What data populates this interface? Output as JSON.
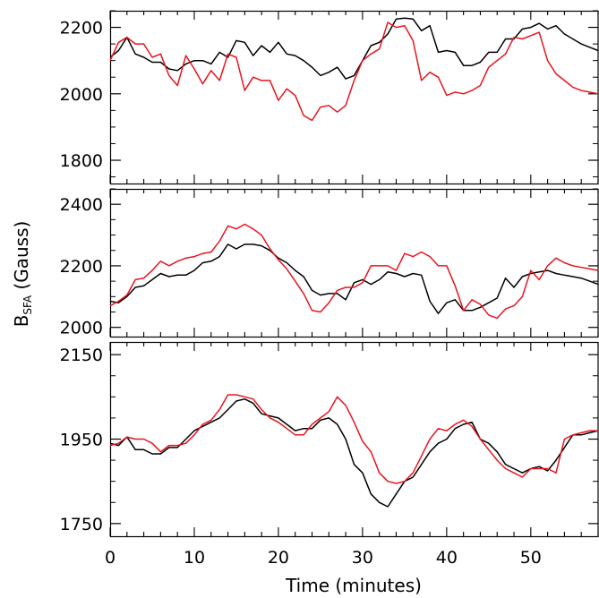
{
  "chart_data": [
    {
      "type": "line",
      "xlim": [
        0,
        58
      ],
      "ylim": [
        1730,
        2250
      ],
      "yticks": [
        1800,
        2000,
        2200
      ],
      "grid": false,
      "series": [
        {
          "color": "#000000",
          "x": [
            0,
            1,
            2,
            3,
            4,
            5,
            6,
            7,
            8,
            9,
            10,
            11,
            12,
            13,
            14,
            15,
            16,
            17,
            18,
            19,
            20,
            21,
            22,
            23,
            24,
            25,
            26,
            27,
            28,
            29,
            30,
            31,
            32,
            33,
            34,
            35,
            36,
            37,
            38,
            39,
            40,
            41,
            42,
            43,
            44,
            45,
            46,
            47,
            48,
            49,
            50,
            51,
            52,
            53,
            54,
            55,
            56,
            57,
            58
          ],
          "y": [
            2110,
            2130,
            2170,
            2120,
            2110,
            2095,
            2095,
            2075,
            2070,
            2090,
            2100,
            2100,
            2090,
            2125,
            2110,
            2160,
            2155,
            2115,
            2145,
            2125,
            2155,
            2120,
            2115,
            2100,
            2080,
            2055,
            2065,
            2080,
            2045,
            2055,
            2100,
            2145,
            2155,
            2180,
            2225,
            2228,
            2225,
            2190,
            2205,
            2125,
            2130,
            2125,
            2085,
            2085,
            2095,
            2125,
            2125,
            2165,
            2165,
            2195,
            2200,
            2212,
            2195,
            2205,
            2180,
            2165,
            2150,
            2140,
            2130
          ]
        },
        {
          "color": "#e8141e",
          "x": [
            0,
            1,
            2,
            3,
            4,
            5,
            6,
            7,
            8,
            9,
            10,
            11,
            12,
            13,
            14,
            15,
            16,
            17,
            18,
            19,
            20,
            21,
            22,
            23,
            24,
            25,
            26,
            27,
            28,
            29,
            30,
            31,
            32,
            33,
            34,
            35,
            36,
            37,
            38,
            39,
            40,
            41,
            42,
            43,
            44,
            45,
            46,
            47,
            48,
            49,
            50,
            51,
            52,
            53,
            54,
            55,
            56,
            57,
            58
          ],
          "y": [
            2100,
            2155,
            2170,
            2150,
            2150,
            2110,
            2120,
            2055,
            2025,
            2115,
            2075,
            2030,
            2070,
            2040,
            2120,
            2110,
            2010,
            2050,
            2040,
            2040,
            1980,
            2015,
            1995,
            1935,
            1920,
            1960,
            1965,
            1945,
            1965,
            2040,
            2100,
            2120,
            2135,
            2215,
            2200,
            2205,
            2160,
            2040,
            2065,
            2050,
            1995,
            2005,
            2000,
            2010,
            2025,
            2080,
            2100,
            2120,
            2170,
            2165,
            2175,
            2185,
            2100,
            2060,
            2040,
            2020,
            2010,
            2005,
            2000
          ]
        }
      ]
    },
    {
      "type": "line",
      "xlim": [
        0,
        58
      ],
      "ylim": [
        1970,
        2450
      ],
      "yticks": [
        2000,
        2200,
        2400
      ],
      "grid": false,
      "series": [
        {
          "color": "#000000",
          "x": [
            0,
            1,
            2,
            3,
            4,
            5,
            6,
            7,
            8,
            9,
            10,
            11,
            12,
            13,
            14,
            15,
            16,
            17,
            18,
            19,
            20,
            21,
            22,
            23,
            24,
            25,
            26,
            27,
            28,
            29,
            30,
            31,
            32,
            33,
            34,
            35,
            36,
            37,
            38,
            39,
            40,
            41,
            42,
            43,
            44,
            45,
            46,
            47,
            48,
            49,
            50,
            51,
            52,
            53,
            54,
            55,
            56,
            57,
            58
          ],
          "y": [
            2085,
            2080,
            2100,
            2130,
            2135,
            2155,
            2175,
            2165,
            2170,
            2170,
            2185,
            2210,
            2215,
            2230,
            2270,
            2255,
            2270,
            2270,
            2265,
            2250,
            2225,
            2210,
            2185,
            2165,
            2120,
            2105,
            2110,
            2110,
            2090,
            2145,
            2155,
            2140,
            2155,
            2180,
            2175,
            2165,
            2175,
            2170,
            2085,
            2045,
            2080,
            2090,
            2055,
            2055,
            2065,
            2080,
            2095,
            2160,
            2130,
            2165,
            2175,
            2180,
            2185,
            2175,
            2170,
            2165,
            2160,
            2150,
            2140
          ]
        },
        {
          "color": "#e8141e",
          "x": [
            0,
            1,
            2,
            3,
            4,
            5,
            6,
            7,
            8,
            9,
            10,
            11,
            12,
            13,
            14,
            15,
            16,
            17,
            18,
            19,
            20,
            21,
            22,
            23,
            24,
            25,
            26,
            27,
            28,
            29,
            30,
            31,
            32,
            33,
            34,
            35,
            36,
            37,
            38,
            39,
            40,
            41,
            42,
            43,
            44,
            45,
            46,
            47,
            48,
            49,
            50,
            51,
            52,
            53,
            54,
            55,
            56,
            57,
            58
          ],
          "y": [
            2070,
            2085,
            2105,
            2155,
            2160,
            2185,
            2215,
            2200,
            2215,
            2225,
            2230,
            2240,
            2245,
            2280,
            2330,
            2320,
            2335,
            2320,
            2300,
            2255,
            2220,
            2190,
            2150,
            2110,
            2055,
            2050,
            2080,
            2120,
            2130,
            2130,
            2145,
            2200,
            2200,
            2200,
            2185,
            2240,
            2230,
            2245,
            2230,
            2200,
            2200,
            2135,
            2055,
            2090,
            2075,
            2040,
            2030,
            2060,
            2070,
            2100,
            2185,
            2155,
            2200,
            2225,
            2210,
            2200,
            2195,
            2190,
            2185
          ]
        }
      ]
    },
    {
      "type": "line",
      "xlim": [
        0,
        58
      ],
      "ylim": [
        1720,
        2180
      ],
      "yticks": [
        1750,
        1950,
        2150
      ],
      "xticks": [
        0,
        10,
        20,
        30,
        40,
        50
      ],
      "grid": false,
      "series": [
        {
          "color": "#000000",
          "x": [
            0,
            1,
            2,
            3,
            4,
            5,
            6,
            7,
            8,
            9,
            10,
            11,
            12,
            13,
            14,
            15,
            16,
            17,
            18,
            19,
            20,
            21,
            22,
            23,
            24,
            25,
            26,
            27,
            28,
            29,
            30,
            31,
            32,
            33,
            34,
            35,
            36,
            37,
            38,
            39,
            40,
            41,
            42,
            43,
            44,
            45,
            46,
            47,
            48,
            49,
            50,
            51,
            52,
            53,
            54,
            55,
            56,
            57,
            58
          ],
          "y": [
            1940,
            1935,
            1955,
            1925,
            1925,
            1915,
            1915,
            1930,
            1930,
            1950,
            1970,
            1980,
            1990,
            2000,
            2020,
            2040,
            2045,
            2035,
            2010,
            2005,
            2000,
            1985,
            1970,
            1975,
            1975,
            1995,
            2000,
            1985,
            1950,
            1890,
            1870,
            1820,
            1800,
            1790,
            1820,
            1850,
            1860,
            1890,
            1920,
            1940,
            1950,
            1975,
            1985,
            1990,
            1950,
            1940,
            1920,
            1890,
            1880,
            1870,
            1880,
            1885,
            1875,
            1900,
            1930,
            1960,
            1960,
            1965,
            1970
          ]
        },
        {
          "color": "#e8141e",
          "x": [
            0,
            1,
            2,
            3,
            4,
            5,
            6,
            7,
            8,
            9,
            10,
            11,
            12,
            13,
            14,
            15,
            16,
            17,
            18,
            19,
            20,
            21,
            22,
            23,
            24,
            25,
            26,
            27,
            28,
            29,
            30,
            31,
            32,
            33,
            34,
            35,
            36,
            37,
            38,
            39,
            40,
            41,
            42,
            43,
            44,
            45,
            46,
            47,
            48,
            49,
            50,
            51,
            52,
            53,
            54,
            55,
            56,
            57,
            58
          ],
          "y": [
            1935,
            1940,
            1955,
            1950,
            1950,
            1940,
            1920,
            1935,
            1935,
            1940,
            1960,
            1985,
            1995,
            2020,
            2055,
            2055,
            2050,
            2045,
            2020,
            2000,
            1990,
            1975,
            1960,
            1960,
            1985,
            2000,
            2015,
            2050,
            2030,
            1990,
            1945,
            1920,
            1870,
            1850,
            1845,
            1850,
            1870,
            1910,
            1950,
            1975,
            1970,
            1985,
            1995,
            1980,
            1950,
            1925,
            1900,
            1880,
            1870,
            1860,
            1880,
            1880,
            1880,
            1870,
            1950,
            1960,
            1965,
            1970,
            1970
          ]
        }
      ]
    }
  ],
  "xlabel": "Time (minutes)",
  "ylabel_main": "B",
  "ylabel_sub": "SFA",
  "ylabel_unit": " (Gauss)"
}
